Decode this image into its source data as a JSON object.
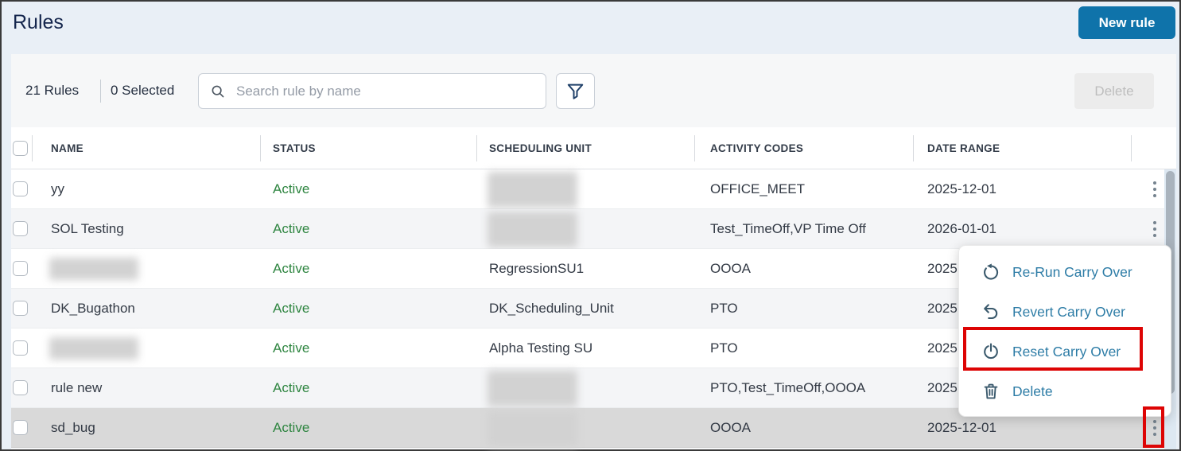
{
  "page_title": "Rules",
  "header": {
    "new_rule_label": "New rule"
  },
  "toolbar": {
    "rules_count": "21 Rules",
    "selected_count": "0 Selected",
    "search_placeholder": "Search rule by name",
    "search_value": "",
    "filter_icon": "filter-funnel-icon",
    "delete_label": "Delete"
  },
  "table": {
    "columns": [
      "NAME",
      "STATUS",
      "SCHEDULING UNIT",
      "ACTIVITY CODES",
      "DATE RANGE"
    ],
    "rows": [
      {
        "name": "yy",
        "status": "Active",
        "scheduling_unit": "",
        "scheduling_unit_redacted": true,
        "activity_codes": "OFFICE_MEET",
        "date_range": "2025-12-01",
        "selected": false
      },
      {
        "name": "SOL Testing",
        "status": "Active",
        "scheduling_unit": "",
        "scheduling_unit_redacted": true,
        "activity_codes": "Test_TimeOff,VP Time Off",
        "date_range": "2026-01-01",
        "selected": false
      },
      {
        "name": "",
        "name_redacted": true,
        "status": "Active",
        "scheduling_unit": "RegressionSU1",
        "activity_codes": "OOOA",
        "date_range": "2025",
        "selected": false
      },
      {
        "name": "DK_Bugathon",
        "status": "Active",
        "scheduling_unit": "DK_Scheduling_Unit",
        "activity_codes": "PTO",
        "date_range": "2025",
        "selected": false
      },
      {
        "name": "",
        "name_redacted": true,
        "status": "Active",
        "scheduling_unit": "Alpha Testing SU",
        "activity_codes": "PTO",
        "date_range": "2025",
        "selected": false
      },
      {
        "name": "rule new",
        "status": "Active",
        "scheduling_unit": "",
        "scheduling_unit_redacted": true,
        "activity_codes": "PTO,Test_TimeOff,OOOA",
        "date_range": "2025",
        "selected": false
      },
      {
        "name": "sd_bug",
        "status": "Active",
        "scheduling_unit": "",
        "scheduling_unit_redacted": true,
        "activity_codes": "OOOA",
        "date_range": "2025-12-01",
        "selected": true
      }
    ]
  },
  "context_menu": {
    "items": [
      {
        "icon": "rerun-carry-over-icon",
        "label": "Re-Run Carry Over",
        "highlighted": false
      },
      {
        "icon": "revert-carry-over-icon",
        "label": "Revert Carry Over",
        "highlighted": false
      },
      {
        "icon": "reset-carry-over-icon",
        "label": "Reset Carry Over",
        "highlighted": true
      },
      {
        "icon": "delete-icon",
        "label": "Delete",
        "highlighted": false
      }
    ]
  },
  "annotations": {
    "highlight_color": "#dd0404"
  },
  "colors": {
    "primary_button": "#0f73aa",
    "active_status": "#2e8540",
    "menu_link": "#2d7ca6",
    "selected_row": "#d9d9d9",
    "page_background": "#e9eff6"
  }
}
